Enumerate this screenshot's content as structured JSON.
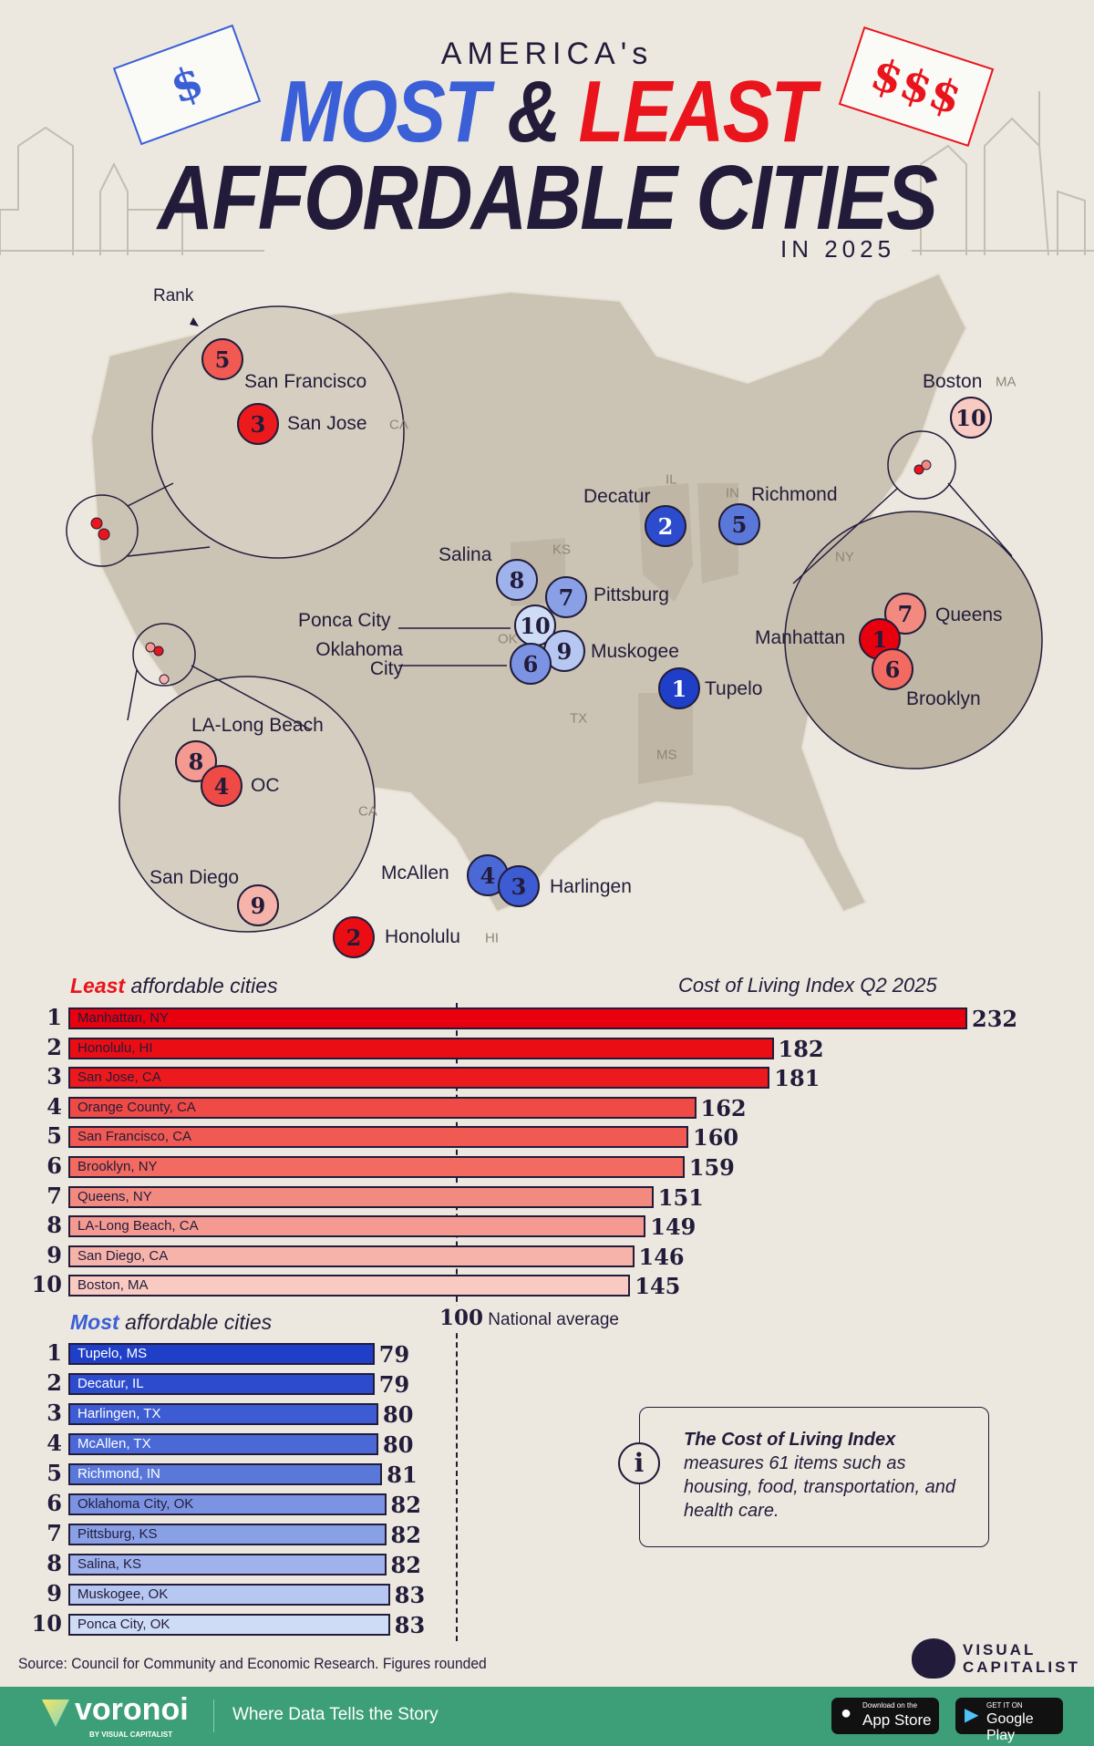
{
  "header": {
    "pre": "AMERICA's",
    "most": "MOST",
    "amp": "&",
    "least": "LEAST",
    "line2": "AFFORDABLE CITIES",
    "year": "IN 2025",
    "tag_cheap": "$",
    "tag_expensive": "$$$"
  },
  "colors": {
    "blue": "#3a5fd6",
    "red": "#e9141c",
    "dark": "#221c3a",
    "map": "#cbc3b4",
    "footer": "#3d9f78"
  },
  "map": {
    "rank_label": "Rank",
    "states": [
      "CA",
      "CA",
      "IL",
      "IN",
      "KS",
      "OK",
      "TX",
      "MS",
      "NY",
      "HI",
      "MA"
    ],
    "markers": [
      {
        "rank": "5",
        "city": "San Francisco",
        "type": "least"
      },
      {
        "rank": "3",
        "city": "San Jose",
        "type": "least"
      },
      {
        "rank": "8",
        "city": "LA-Long Beach",
        "type": "least"
      },
      {
        "rank": "4",
        "city": "OC",
        "type": "least"
      },
      {
        "rank": "9",
        "city": "San Diego",
        "type": "least"
      },
      {
        "rank": "2",
        "city": "Honolulu",
        "type": "least"
      },
      {
        "rank": "10",
        "city": "Boston",
        "type": "least"
      },
      {
        "rank": "7",
        "city": "Queens",
        "type": "least"
      },
      {
        "rank": "1",
        "city": "Manhattan",
        "type": "least"
      },
      {
        "rank": "6",
        "city": "Brooklyn",
        "type": "least"
      },
      {
        "rank": "2",
        "city": "Decatur",
        "type": "most"
      },
      {
        "rank": "5",
        "city": "Richmond",
        "type": "most"
      },
      {
        "rank": "8",
        "city": "Salina",
        "type": "most"
      },
      {
        "rank": "7",
        "city": "Pittsburg",
        "type": "most"
      },
      {
        "rank": "10",
        "city": "Ponca City",
        "type": "most"
      },
      {
        "rank": "9",
        "city": "Muskogee",
        "type": "most"
      },
      {
        "rank": "6",
        "city": "Oklahoma City",
        "type": "most"
      },
      {
        "rank": "1",
        "city": "Tupelo",
        "type": "most"
      },
      {
        "rank": "4",
        "city": "McAllen",
        "type": "most"
      },
      {
        "rank": "3",
        "city": "Harlingen",
        "type": "most"
      }
    ]
  },
  "chart_data": {
    "type": "bar",
    "title": "Cost of Living Index Q2 2025",
    "reference": {
      "value": 100,
      "label": "100",
      "text": "National average"
    },
    "xlim": [
      0,
      232
    ],
    "series": [
      {
        "name": "Least affordable cities",
        "name_em": "Least",
        "name_rest": "affordable cities",
        "colors": [
          "#e8000f",
          "#ea0d14",
          "#ec1a1c",
          "#ef4a45",
          "#f05a52",
          "#f26a60",
          "#f38a80",
          "#f59a90",
          "#f6b3aa",
          "#f8cac2"
        ],
        "categories": [
          "Manhattan, NY",
          "Honolulu, HI",
          "San Jose, CA",
          "Orange County, CA",
          "San Francisco, CA",
          "Brooklyn, NY",
          "Queens, NY",
          "LA-Long Beach, CA",
          "San Diego, CA",
          "Boston, MA"
        ],
        "values": [
          232,
          182,
          181,
          162,
          160,
          159,
          151,
          149,
          146,
          145
        ]
      },
      {
        "name": "Most affordable cities",
        "name_em": "Most",
        "name_rest": "affordable cities",
        "colors": [
          "#1f3fc8",
          "#2d4ccd",
          "#3d5bd2",
          "#4a69d6",
          "#5a78da",
          "#7b93e2",
          "#8aa0e6",
          "#9fb2eb",
          "#b6c7f1",
          "#cfdcf6"
        ],
        "categories": [
          "Tupelo, MS",
          "Decatur, IL",
          "Harlingen, TX",
          "McAllen, TX",
          "Richmond, IN",
          "Oklahoma City, OK",
          "Pittsburg, KS",
          "Salina, KS",
          "Muskogee, OK",
          "Ponca City, OK"
        ],
        "values": [
          79,
          79,
          80,
          80,
          81,
          82,
          82,
          82,
          83,
          83
        ]
      }
    ]
  },
  "info": {
    "bold": "The Cost of Living Index",
    "rest": "measures 61 items such as housing, food, transportation, and health care.",
    "icon": "info-icon"
  },
  "source": "Source: Council for Community and Economic Research. Figures rounded",
  "brand": {
    "vc1": "VISUAL",
    "vc2": "CAPITALIST"
  },
  "footer": {
    "logo": "voronoi",
    "by": "BY VISUAL CAPITALIST",
    "tagline": "Where Data Tells the Story",
    "appstore_small": "Download on the",
    "appstore": "App Store",
    "google_small": "GET IT ON",
    "google": "Google Play"
  }
}
